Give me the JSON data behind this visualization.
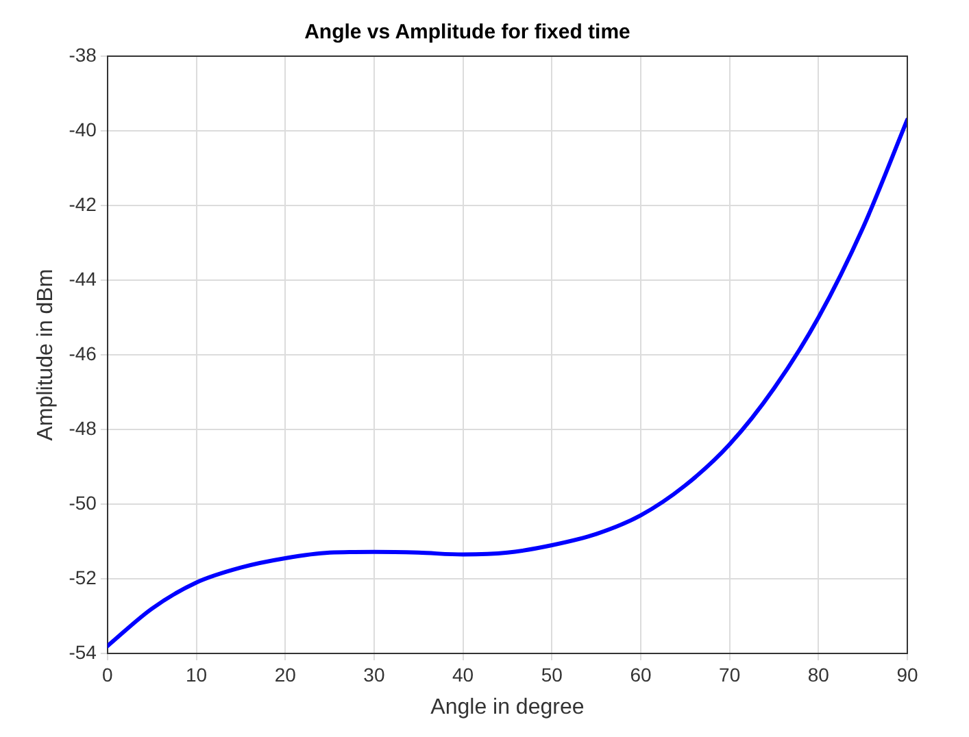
{
  "chart_data": {
    "type": "line",
    "title": "Angle vs Amplitude for fixed time",
    "xlabel": "Angle in degree",
    "ylabel": "Amplitude in dBm",
    "x": [
      0,
      5,
      10,
      15,
      20,
      25,
      30,
      35,
      40,
      45,
      50,
      55,
      60,
      65,
      70,
      75,
      80,
      85,
      90
    ],
    "series": [
      {
        "color": "#0000ff",
        "values": [
          -53.8,
          -52.8,
          -52.1,
          -51.7,
          -51.45,
          -51.3,
          -51.28,
          -51.3,
          -51.35,
          -51.3,
          -51.1,
          -50.8,
          -50.3,
          -49.5,
          -48.4,
          -46.9,
          -45.0,
          -42.6,
          -39.7
        ]
      }
    ],
    "xlim": [
      0,
      90
    ],
    "xticks": [
      0,
      10,
      20,
      30,
      40,
      50,
      60,
      70,
      80,
      90
    ],
    "ylim": [
      -54,
      -38
    ],
    "yticks": [
      -54,
      -52,
      -50,
      -48,
      -46,
      -44,
      -42,
      -40,
      -38
    ],
    "grid": true,
    "legend": false,
    "marker": "none",
    "line_style": "solid"
  }
}
